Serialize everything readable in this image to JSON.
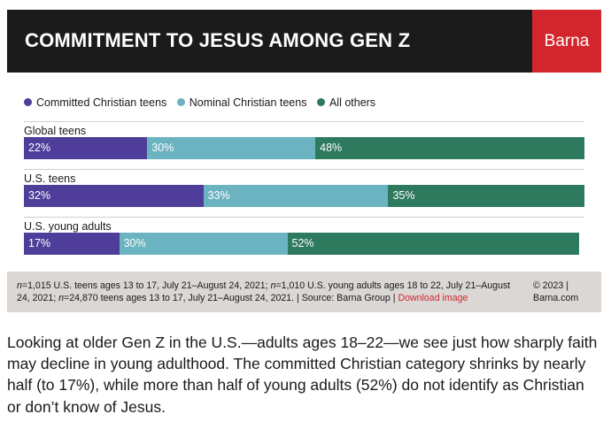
{
  "title": "COMMITMENT TO JESUS AMONG GEN Z",
  "brand": "Barna",
  "colors": {
    "committed": "#4f3e99",
    "nominal": "#6cb3c1",
    "others": "#2d7a5e",
    "brand_red": "#d3262c",
    "header_bg": "#1b1b1b",
    "notes_bg": "#dad7d5"
  },
  "chart_data": {
    "type": "bar",
    "orientation": "horizontal",
    "stacked": true,
    "title": "COMMITMENT TO JESUS AMONG GEN Z",
    "categories": [
      "Global teens",
      "U.S. teens",
      "U.S. young adults"
    ],
    "series": [
      {
        "name": "Committed Christian teens",
        "values": [
          22,
          32,
          17
        ],
        "labels": [
          "22%",
          "32%",
          "17%"
        ]
      },
      {
        "name": "Nominal Christian teens",
        "values": [
          30,
          33,
          30
        ],
        "labels": [
          "30%",
          "33%",
          "30%"
        ]
      },
      {
        "name": "All others",
        "values": [
          48,
          35,
          52
        ],
        "labels": [
          "48%",
          "35%",
          "52%"
        ]
      }
    ],
    "xlim": [
      0,
      100
    ],
    "legend": "top-left",
    "grid": false
  },
  "notes": {
    "n1": "n",
    "t1": "=1,015 U.S. teens ages 13 to 17, July 21–August 24, 2021; ",
    "n2": "n",
    "t2": "=1,010 U.S. young adults ages 18 to 22, July 21–August 24, 2021; ",
    "n3": "n",
    "t3": "=24,870 teens ages 13 to 17, July 21–August 24, 2021. | Source: Barna Group | ",
    "download": "Download image",
    "copyright": "© 2023 | Barna.com"
  },
  "paragraph": "Looking at older Gen Z in the U.S.—adults ages 18–22—we see just how sharply faith may decline in young adulthood. The committed Christian category shrinks by nearly half (to 17%), while more than half of young adults (52%) do not identify as Christian or don’t know of Jesus."
}
